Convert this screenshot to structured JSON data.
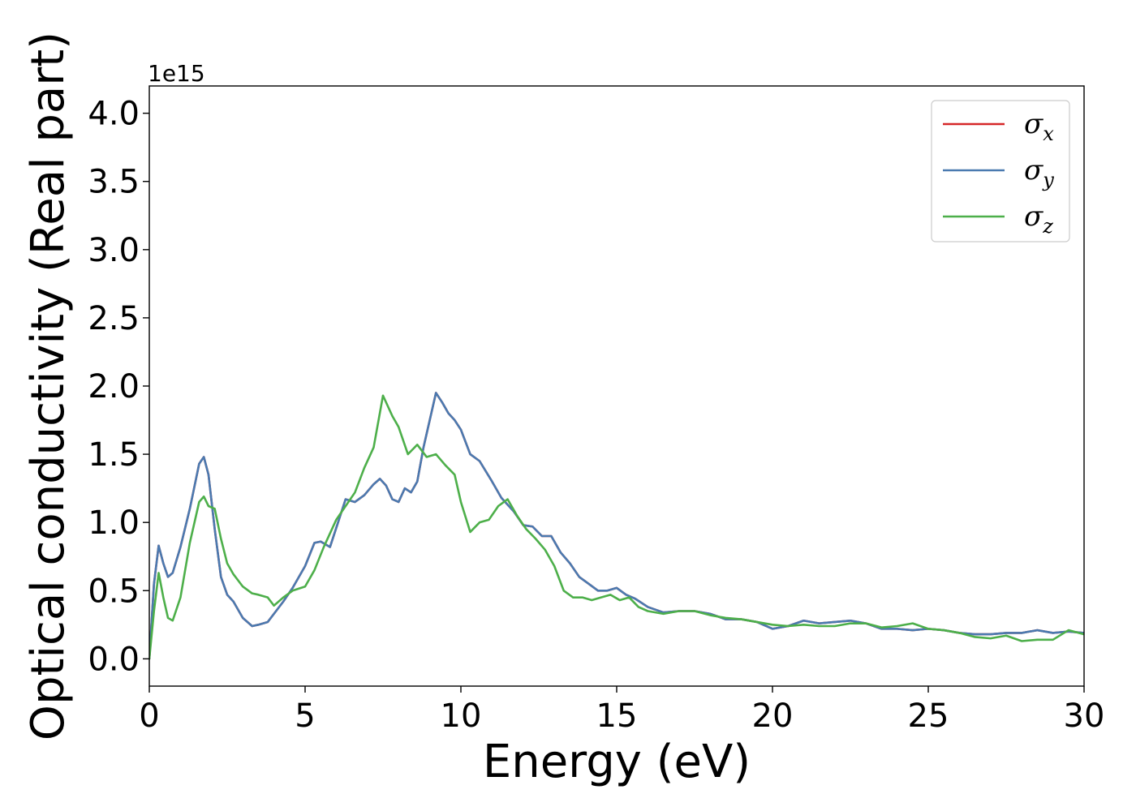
{
  "chart_data": {
    "type": "line",
    "xlabel": "Energy (eV)",
    "ylabel": "Optical conductivity (Real part)",
    "y_offset_label": "1e15",
    "y_scale": 1000000000000000.0,
    "xlim": [
      0,
      30
    ],
    "ylim": [
      -0.2,
      4.2
    ],
    "x_ticks": [
      0,
      5,
      10,
      15,
      20,
      25,
      30
    ],
    "x_tick_labels": [
      "0",
      "5",
      "10",
      "15",
      "20",
      "25",
      "30"
    ],
    "y_ticks": [
      0.0,
      0.5,
      1.0,
      1.5,
      2.0,
      2.5,
      3.0,
      3.5,
      4.0
    ],
    "y_tick_labels": [
      "0.0",
      "0.5",
      "1.0",
      "1.5",
      "2.0",
      "2.5",
      "3.0",
      "3.5",
      "4.0"
    ],
    "grid": false,
    "legend_position": "upper right",
    "series": [
      {
        "name": "σx",
        "legend_symbol": "σ",
        "legend_subscript": "x",
        "color": "#d62728",
        "x": [
          0,
          0.15,
          0.3,
          0.45,
          0.6,
          0.75,
          1.0,
          1.3,
          1.6,
          1.75,
          1.9,
          2.1,
          2.3,
          2.5,
          2.7,
          3.0,
          3.3,
          3.5,
          3.8,
          4.0,
          4.3,
          4.6,
          5.0,
          5.3,
          5.5,
          5.8,
          6.0,
          6.3,
          6.6,
          6.9,
          7.2,
          7.4,
          7.6,
          7.8,
          8.0,
          8.2,
          8.4,
          8.6,
          8.8,
          9.0,
          9.2,
          9.4,
          9.6,
          9.8,
          10.0,
          10.3,
          10.6,
          11.0,
          11.3,
          11.7,
          12.0,
          12.3,
          12.6,
          12.9,
          13.2,
          13.5,
          13.8,
          14.1,
          14.4,
          14.7,
          15.0,
          15.3,
          15.6,
          16.0,
          16.5,
          17.0,
          17.5,
          18.0,
          18.5,
          19.0,
          19.5,
          20.0,
          20.5,
          21.0,
          21.5,
          22.0,
          22.5,
          23.0,
          23.5,
          24.0,
          24.5,
          25.0,
          25.5,
          26.0,
          26.5,
          27.0,
          27.5,
          28.0,
          28.5,
          29.0,
          29.5,
          30.0
        ],
        "y": [
          0.0,
          0.55,
          0.83,
          0.7,
          0.6,
          0.63,
          0.82,
          1.1,
          1.43,
          1.48,
          1.35,
          0.95,
          0.6,
          0.47,
          0.42,
          0.3,
          0.24,
          0.25,
          0.27,
          0.33,
          0.42,
          0.52,
          0.68,
          0.85,
          0.86,
          0.82,
          0.96,
          1.17,
          1.15,
          1.2,
          1.28,
          1.32,
          1.27,
          1.17,
          1.15,
          1.25,
          1.22,
          1.3,
          1.55,
          1.75,
          1.95,
          1.88,
          1.8,
          1.75,
          1.68,
          1.5,
          1.45,
          1.3,
          1.18,
          1.08,
          0.98,
          0.97,
          0.9,
          0.9,
          0.78,
          0.7,
          0.6,
          0.55,
          0.5,
          0.5,
          0.52,
          0.47,
          0.44,
          0.38,
          0.34,
          0.35,
          0.35,
          0.33,
          0.29,
          0.29,
          0.27,
          0.22,
          0.24,
          0.28,
          0.26,
          0.27,
          0.28,
          0.26,
          0.22,
          0.22,
          0.21,
          0.22,
          0.21,
          0.19,
          0.18,
          0.18,
          0.19,
          0.19,
          0.21,
          0.19,
          0.2,
          0.19
        ]
      },
      {
        "name": "σy",
        "legend_symbol": "σ",
        "legend_subscript": "y",
        "color": "#4a7ab0",
        "x": [
          0,
          0.15,
          0.3,
          0.45,
          0.6,
          0.75,
          1.0,
          1.3,
          1.6,
          1.75,
          1.9,
          2.1,
          2.3,
          2.5,
          2.7,
          3.0,
          3.3,
          3.5,
          3.8,
          4.0,
          4.3,
          4.6,
          5.0,
          5.3,
          5.5,
          5.8,
          6.0,
          6.3,
          6.6,
          6.9,
          7.2,
          7.4,
          7.6,
          7.8,
          8.0,
          8.2,
          8.4,
          8.6,
          8.8,
          9.0,
          9.2,
          9.4,
          9.6,
          9.8,
          10.0,
          10.3,
          10.6,
          11.0,
          11.3,
          11.7,
          12.0,
          12.3,
          12.6,
          12.9,
          13.2,
          13.5,
          13.8,
          14.1,
          14.4,
          14.7,
          15.0,
          15.3,
          15.6,
          16.0,
          16.5,
          17.0,
          17.5,
          18.0,
          18.5,
          19.0,
          19.5,
          20.0,
          20.5,
          21.0,
          21.5,
          22.0,
          22.5,
          23.0,
          23.5,
          24.0,
          24.5,
          25.0,
          25.5,
          26.0,
          26.5,
          27.0,
          27.5,
          28.0,
          28.5,
          29.0,
          29.5,
          30.0
        ],
        "y": [
          0.0,
          0.55,
          0.83,
          0.7,
          0.6,
          0.63,
          0.82,
          1.1,
          1.43,
          1.48,
          1.35,
          0.95,
          0.6,
          0.47,
          0.42,
          0.3,
          0.24,
          0.25,
          0.27,
          0.33,
          0.42,
          0.52,
          0.68,
          0.85,
          0.86,
          0.82,
          0.96,
          1.17,
          1.15,
          1.2,
          1.28,
          1.32,
          1.27,
          1.17,
          1.15,
          1.25,
          1.22,
          1.3,
          1.55,
          1.75,
          1.95,
          1.88,
          1.8,
          1.75,
          1.68,
          1.5,
          1.45,
          1.3,
          1.18,
          1.08,
          0.98,
          0.97,
          0.9,
          0.9,
          0.78,
          0.7,
          0.6,
          0.55,
          0.5,
          0.5,
          0.52,
          0.47,
          0.44,
          0.38,
          0.34,
          0.35,
          0.35,
          0.33,
          0.29,
          0.29,
          0.27,
          0.22,
          0.24,
          0.28,
          0.26,
          0.27,
          0.28,
          0.26,
          0.22,
          0.22,
          0.21,
          0.22,
          0.21,
          0.19,
          0.18,
          0.18,
          0.19,
          0.19,
          0.21,
          0.19,
          0.2,
          0.19
        ]
      },
      {
        "name": "σz",
        "legend_symbol": "σ",
        "legend_subscript": "z",
        "color": "#4daf4a",
        "x": [
          0,
          0.15,
          0.3,
          0.45,
          0.6,
          0.75,
          1.0,
          1.3,
          1.6,
          1.75,
          1.9,
          2.1,
          2.3,
          2.5,
          2.7,
          3.0,
          3.3,
          3.5,
          3.8,
          4.0,
          4.3,
          4.6,
          5.0,
          5.3,
          5.6,
          6.0,
          6.3,
          6.6,
          6.9,
          7.2,
          7.5,
          7.8,
          8.0,
          8.3,
          8.6,
          8.9,
          9.2,
          9.5,
          9.8,
          10.0,
          10.3,
          10.6,
          10.9,
          11.2,
          11.5,
          11.8,
          12.1,
          12.4,
          12.7,
          13.0,
          13.3,
          13.6,
          13.9,
          14.2,
          14.5,
          14.8,
          15.1,
          15.4,
          15.7,
          16.0,
          16.5,
          17.0,
          17.5,
          18.0,
          18.5,
          19.0,
          19.5,
          20.0,
          20.5,
          21.0,
          21.5,
          22.0,
          22.5,
          23.0,
          23.5,
          24.0,
          24.5,
          25.0,
          25.5,
          26.0,
          26.5,
          27.0,
          27.5,
          28.0,
          28.5,
          29.0,
          29.5,
          30.0
        ],
        "y": [
          0.0,
          0.35,
          0.63,
          0.45,
          0.3,
          0.28,
          0.45,
          0.85,
          1.15,
          1.19,
          1.12,
          1.1,
          0.88,
          0.7,
          0.62,
          0.53,
          0.48,
          0.47,
          0.45,
          0.39,
          0.45,
          0.5,
          0.53,
          0.65,
          0.82,
          1.02,
          1.12,
          1.22,
          1.4,
          1.55,
          1.93,
          1.78,
          1.7,
          1.5,
          1.57,
          1.48,
          1.5,
          1.42,
          1.35,
          1.15,
          0.93,
          1.0,
          1.02,
          1.12,
          1.17,
          1.05,
          0.95,
          0.88,
          0.8,
          0.68,
          0.5,
          0.45,
          0.45,
          0.43,
          0.45,
          0.47,
          0.43,
          0.45,
          0.38,
          0.35,
          0.33,
          0.35,
          0.35,
          0.32,
          0.3,
          0.29,
          0.27,
          0.25,
          0.24,
          0.25,
          0.24,
          0.24,
          0.26,
          0.26,
          0.23,
          0.24,
          0.26,
          0.22,
          0.21,
          0.19,
          0.16,
          0.15,
          0.17,
          0.13,
          0.14,
          0.14,
          0.21,
          0.18
        ]
      }
    ]
  }
}
